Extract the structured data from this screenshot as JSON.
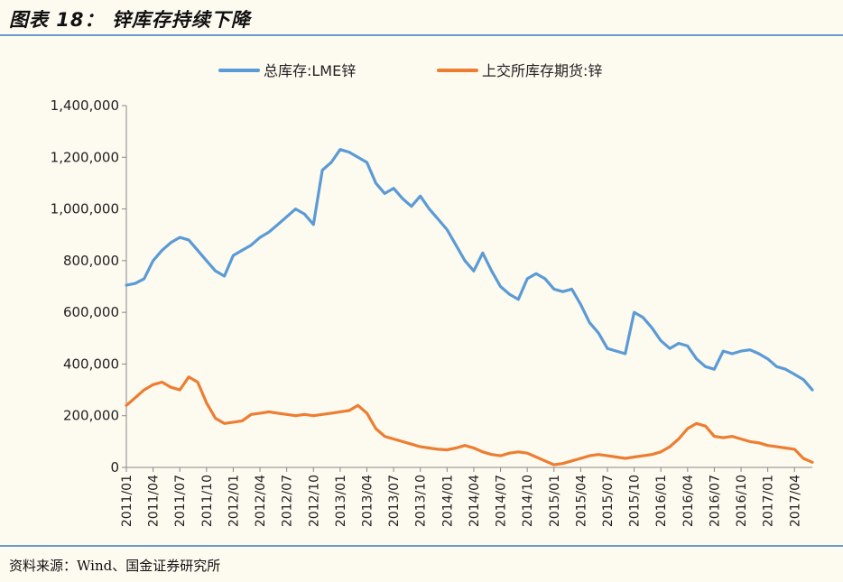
{
  "title": "图表 18：  锌库存持续下降",
  "source": "资料来源：Wind、国金证券研究所",
  "chart_data": {
    "type": "line",
    "xlabel": "",
    "ylabel": "",
    "ylim": [
      0,
      1400000
    ],
    "yticks": [
      "0",
      "200,000",
      "400,000",
      "600,000",
      "800,000",
      "1,000,000",
      "1,200,000",
      "1,400,000"
    ],
    "xticks": [
      "2011/01",
      "2011/04",
      "2011/07",
      "2011/10",
      "2012/01",
      "2012/04",
      "2012/07",
      "2012/10",
      "2013/01",
      "2013/04",
      "2013/07",
      "2013/10",
      "2014/01",
      "2014/04",
      "2014/07",
      "2014/10",
      "2015/01",
      "2015/04",
      "2015/07",
      "2015/10",
      "2016/01",
      "2016/04",
      "2016/07",
      "2016/10",
      "2017/01",
      "2017/04"
    ],
    "legend_position": "top",
    "grid": false,
    "series": [
      {
        "name": "总库存:LME锌",
        "color": "#5b9bd5",
        "x": [
          "2011/01",
          "2011/02",
          "2011/03",
          "2011/04",
          "2011/05",
          "2011/06",
          "2011/07",
          "2011/08",
          "2011/09",
          "2011/10",
          "2011/11",
          "2011/12",
          "2012/01",
          "2012/02",
          "2012/03",
          "2012/04",
          "2012/05",
          "2012/06",
          "2012/07",
          "2012/08",
          "2012/09",
          "2012/10",
          "2012/11",
          "2012/12",
          "2013/01",
          "2013/02",
          "2013/03",
          "2013/04",
          "2013/05",
          "2013/06",
          "2013/07",
          "2013/08",
          "2013/09",
          "2013/10",
          "2013/11",
          "2013/12",
          "2014/01",
          "2014/02",
          "2014/03",
          "2014/04",
          "2014/05",
          "2014/06",
          "2014/07",
          "2014/08",
          "2014/09",
          "2014/10",
          "2014/11",
          "2014/12",
          "2015/01",
          "2015/02",
          "2015/03",
          "2015/04",
          "2015/05",
          "2015/06",
          "2015/07",
          "2015/08",
          "2015/09",
          "2015/10",
          "2015/11",
          "2015/12",
          "2016/01",
          "2016/02",
          "2016/03",
          "2016/04",
          "2016/05",
          "2016/06",
          "2016/07",
          "2016/08",
          "2016/09",
          "2016/10",
          "2016/11",
          "2016/12",
          "2017/01",
          "2017/02",
          "2017/03",
          "2017/04",
          "2017/05",
          "2017/06"
        ],
        "values": [
          705000,
          712000,
          730000,
          800000,
          840000,
          870000,
          890000,
          880000,
          840000,
          800000,
          760000,
          740000,
          820000,
          840000,
          860000,
          890000,
          910000,
          940000,
          970000,
          1000000,
          980000,
          940000,
          1150000,
          1180000,
          1230000,
          1220000,
          1200000,
          1180000,
          1100000,
          1060000,
          1080000,
          1040000,
          1010000,
          1050000,
          1000000,
          960000,
          920000,
          860000,
          800000,
          760000,
          830000,
          760000,
          700000,
          670000,
          650000,
          730000,
          750000,
          730000,
          690000,
          680000,
          690000,
          630000,
          560000,
          520000,
          460000,
          450000,
          440000,
          600000,
          580000,
          540000,
          490000,
          460000,
          480000,
          470000,
          420000,
          390000,
          380000,
          450000,
          440000,
          450000,
          455000,
          440000,
          420000,
          390000,
          380000,
          360000,
          340000,
          300000
        ]
      },
      {
        "name": "上交所库存期货:锌",
        "color": "#ed7d31",
        "x": [
          "2011/01",
          "2011/02",
          "2011/03",
          "2011/04",
          "2011/05",
          "2011/06",
          "2011/07",
          "2011/08",
          "2011/09",
          "2011/10",
          "2011/11",
          "2011/12",
          "2012/01",
          "2012/02",
          "2012/03",
          "2012/04",
          "2012/05",
          "2012/06",
          "2012/07",
          "2012/08",
          "2012/09",
          "2012/10",
          "2012/11",
          "2012/12",
          "2013/01",
          "2013/02",
          "2013/03",
          "2013/04",
          "2013/05",
          "2013/06",
          "2013/07",
          "2013/08",
          "2013/09",
          "2013/10",
          "2013/11",
          "2013/12",
          "2014/01",
          "2014/02",
          "2014/03",
          "2014/04",
          "2014/05",
          "2014/06",
          "2014/07",
          "2014/08",
          "2014/09",
          "2014/10",
          "2014/11",
          "2014/12",
          "2015/01",
          "2015/02",
          "2015/03",
          "2015/04",
          "2015/05",
          "2015/06",
          "2015/07",
          "2015/08",
          "2015/09",
          "2015/10",
          "2015/11",
          "2015/12",
          "2016/01",
          "2016/02",
          "2016/03",
          "2016/04",
          "2016/05",
          "2016/06",
          "2016/07",
          "2016/08",
          "2016/09",
          "2016/10",
          "2016/11",
          "2016/12",
          "2017/01",
          "2017/02",
          "2017/03",
          "2017/04",
          "2017/05",
          "2017/06"
        ],
        "values": [
          240000,
          270000,
          300000,
          320000,
          330000,
          310000,
          300000,
          350000,
          330000,
          250000,
          190000,
          170000,
          175000,
          180000,
          205000,
          210000,
          215000,
          210000,
          205000,
          200000,
          205000,
          200000,
          205000,
          210000,
          215000,
          220000,
          240000,
          210000,
          150000,
          120000,
          110000,
          100000,
          90000,
          80000,
          75000,
          70000,
          68000,
          75000,
          85000,
          75000,
          60000,
          50000,
          45000,
          55000,
          60000,
          55000,
          40000,
          25000,
          10000,
          15000,
          25000,
          35000,
          45000,
          50000,
          45000,
          40000,
          35000,
          40000,
          45000,
          50000,
          60000,
          80000,
          110000,
          150000,
          170000,
          160000,
          120000,
          115000,
          120000,
          110000,
          100000,
          95000,
          85000,
          80000,
          75000,
          70000,
          35000,
          20000
        ]
      }
    ]
  }
}
